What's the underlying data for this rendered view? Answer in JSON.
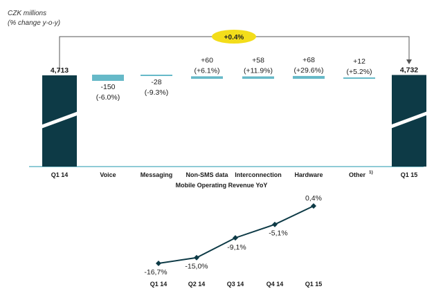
{
  "header": {
    "unit_line1": "CZK millions",
    "unit_line2": "(% change y-o-y)"
  },
  "colors": {
    "dark": "#0d3a46",
    "teal": "#66b9c8",
    "axis": "#8fcbd6",
    "badge": "#f3dd1a"
  },
  "chart_data": [
    {
      "type": "bar",
      "subtype": "waterfall",
      "title": "",
      "categories": [
        "Q1 14",
        "Voice",
        "Messaging",
        "Non-SMS data",
        "Interconnection",
        "Hardware",
        "Other 1)",
        "Q1 15"
      ],
      "category_labels": [
        "Q1 14",
        "Voice",
        "Messaging",
        "Non-SMS data",
        "Interconnection",
        "Hardware",
        "Other",
        "Q1 15"
      ],
      "footnote_mark": "1)",
      "start": 4713,
      "end": 4732,
      "deltas": [
        -150,
        -28,
        60,
        58,
        68,
        12
      ],
      "value_labels": [
        "4,713",
        "-150",
        "-28",
        "+60",
        "+58",
        "+68",
        "+12",
        "4,732"
      ],
      "pct_labels": [
        "",
        "(-6.0%)",
        "(-9.3%)",
        "(+6.1%)",
        "(+11.9%)",
        "(+29.6%)",
        "(+5.2%)",
        ""
      ],
      "total_change": "+0.4%",
      "xlabel": "",
      "ylabel": ""
    },
    {
      "type": "line",
      "title": "Mobile Operating Revenue YoY",
      "x": [
        "Q1 14",
        "Q2 14",
        "Q3 14",
        "Q4 14",
        "Q1 15"
      ],
      "y": [
        -16.7,
        -15.0,
        -9.1,
        -5.1,
        0.4
      ],
      "value_labels": [
        "-16,7%",
        "-15,0%",
        "-9,1%",
        "-5,1%",
        "0,4%"
      ],
      "ylim": [
        -18,
        1
      ],
      "xlabel": "",
      "ylabel": ""
    }
  ]
}
